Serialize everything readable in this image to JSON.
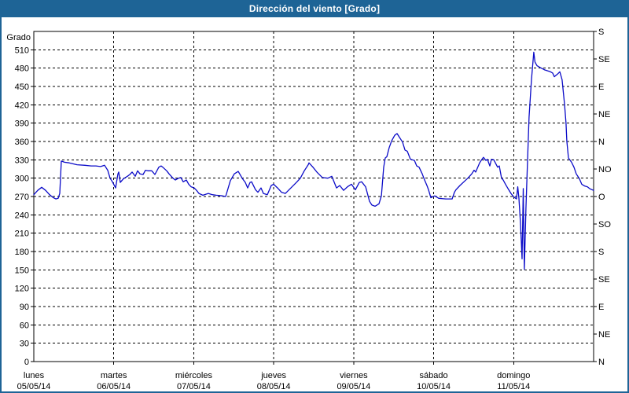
{
  "window": {
    "title": "Dirección del viento [Grado]"
  },
  "colors": {
    "titlebar": "#1E6496",
    "border": "#1E6496",
    "background": "#FFFFFF",
    "frame": "#000000",
    "grid": "#000000",
    "line": "#0B0BC8",
    "text": "#000000"
  },
  "chart_data": {
    "type": "line",
    "title": "Dirección del viento [Grado]",
    "ylabel": "Grado",
    "y_min": 0,
    "y_max": 540,
    "y_grid_step": 30,
    "grid": "dashed",
    "legend_position": "none",
    "x_range_days": [
      0,
      7
    ],
    "left_ticks": [
      0,
      30,
      60,
      90,
      120,
      150,
      180,
      210,
      240,
      270,
      300,
      330,
      360,
      390,
      420,
      450,
      480,
      510
    ],
    "right_ticks": [
      {
        "value": 0,
        "label": "N"
      },
      {
        "value": 45,
        "label": "NE"
      },
      {
        "value": 90,
        "label": "E"
      },
      {
        "value": 135,
        "label": "SE"
      },
      {
        "value": 180,
        "label": "S"
      },
      {
        "value": 225,
        "label": "SO"
      },
      {
        "value": 270,
        "label": "O"
      },
      {
        "value": 315,
        "label": "NO"
      },
      {
        "value": 360,
        "label": "N"
      },
      {
        "value": 405,
        "label": "NE"
      },
      {
        "value": 450,
        "label": "E"
      },
      {
        "value": 495,
        "label": "SE"
      },
      {
        "value": 540,
        "label": "S"
      }
    ],
    "x_days": [
      {
        "name": "lunes",
        "date": "05/05/14"
      },
      {
        "name": "martes",
        "date": "06/05/14"
      },
      {
        "name": "miércoles",
        "date": "07/05/14"
      },
      {
        "name": "jueves",
        "date": "08/05/14"
      },
      {
        "name": "viernes",
        "date": "09/05/14"
      },
      {
        "name": "sábado",
        "date": "10/05/14"
      },
      {
        "name": "domingo",
        "date": "11/05/14"
      }
    ],
    "series": [
      {
        "name": "Dirección del viento (grados)",
        "points": [
          [
            0.0,
            273
          ],
          [
            0.049,
            280
          ],
          [
            0.098,
            285
          ],
          [
            0.147,
            280
          ],
          [
            0.197,
            273
          ],
          [
            0.246,
            268
          ],
          [
            0.275,
            266
          ],
          [
            0.305,
            267
          ],
          [
            0.324,
            275
          ],
          [
            0.344,
            328
          ],
          [
            0.383,
            326
          ],
          [
            0.442,
            325
          ],
          [
            0.541,
            322
          ],
          [
            0.639,
            321
          ],
          [
            0.718,
            320
          ],
          [
            0.777,
            320
          ],
          [
            0.836,
            319
          ],
          [
            0.885,
            321
          ],
          [
            0.924,
            313
          ],
          [
            0.954,
            300
          ],
          [
            0.983,
            294
          ],
          [
            1.022,
            284
          ],
          [
            1.052,
            307
          ],
          [
            1.062,
            310
          ],
          [
            1.081,
            293
          ],
          [
            1.121,
            299
          ],
          [
            1.17,
            303
          ],
          [
            1.2,
            306
          ],
          [
            1.229,
            310
          ],
          [
            1.268,
            303
          ],
          [
            1.298,
            312
          ],
          [
            1.327,
            307
          ],
          [
            1.367,
            306
          ],
          [
            1.396,
            313
          ],
          [
            1.426,
            312
          ],
          [
            1.475,
            312
          ],
          [
            1.514,
            306
          ],
          [
            1.563,
            318
          ],
          [
            1.593,
            320
          ],
          [
            1.612,
            318
          ],
          [
            1.662,
            312
          ],
          [
            1.691,
            307
          ],
          [
            1.74,
            300
          ],
          [
            1.77,
            297
          ],
          [
            1.809,
            300
          ],
          [
            1.839,
            301
          ],
          [
            1.868,
            294
          ],
          [
            1.907,
            297
          ],
          [
            1.937,
            290
          ],
          [
            1.966,
            286
          ],
          [
            2.006,
            284
          ],
          [
            2.035,
            280
          ],
          [
            2.065,
            275
          ],
          [
            2.114,
            272
          ],
          [
            2.183,
            275
          ],
          [
            2.232,
            273
          ],
          [
            2.281,
            272
          ],
          [
            2.36,
            271
          ],
          [
            2.399,
            270
          ],
          [
            2.458,
            296
          ],
          [
            2.507,
            307
          ],
          [
            2.556,
            311
          ],
          [
            2.605,
            300
          ],
          [
            2.645,
            293
          ],
          [
            2.674,
            284
          ],
          [
            2.704,
            293
          ],
          [
            2.723,
            294
          ],
          [
            2.772,
            281
          ],
          [
            2.802,
            277
          ],
          [
            2.841,
            284
          ],
          [
            2.871,
            275
          ],
          [
            2.92,
            273
          ],
          [
            2.969,
            288
          ],
          [
            2.999,
            290
          ],
          [
            3.048,
            284
          ],
          [
            3.097,
            277
          ],
          [
            3.146,
            275
          ],
          [
            3.215,
            284
          ],
          [
            3.284,
            293
          ],
          [
            3.333,
            300
          ],
          [
            3.382,
            312
          ],
          [
            3.431,
            322
          ],
          [
            3.441,
            325
          ],
          [
            3.49,
            318
          ],
          [
            3.539,
            310
          ],
          [
            3.608,
            301
          ],
          [
            3.677,
            300
          ],
          [
            3.726,
            303
          ],
          [
            3.785,
            284
          ],
          [
            3.825,
            288
          ],
          [
            3.874,
            280
          ],
          [
            3.923,
            286
          ],
          [
            3.972,
            290
          ],
          [
            4.021,
            281
          ],
          [
            4.07,
            293
          ],
          [
            4.1,
            294
          ],
          [
            4.149,
            286
          ],
          [
            4.198,
            262
          ],
          [
            4.228,
            256
          ],
          [
            4.267,
            254
          ],
          [
            4.316,
            258
          ],
          [
            4.346,
            271
          ],
          [
            4.375,
            318
          ],
          [
            4.395,
            333
          ],
          [
            4.414,
            335
          ],
          [
            4.444,
            350
          ],
          [
            4.474,
            361
          ],
          [
            4.513,
            370
          ],
          [
            4.542,
            373
          ],
          [
            4.572,
            367
          ],
          [
            4.611,
            359
          ],
          [
            4.641,
            346
          ],
          [
            4.67,
            344
          ],
          [
            4.709,
            331
          ],
          [
            4.759,
            329
          ],
          [
            4.788,
            320
          ],
          [
            4.817,
            318
          ],
          [
            4.857,
            307
          ],
          [
            4.886,
            297
          ],
          [
            4.916,
            288
          ],
          [
            4.935,
            281
          ],
          [
            4.965,
            268
          ],
          [
            5.014,
            271
          ],
          [
            5.063,
            267
          ],
          [
            5.152,
            266
          ],
          [
            5.23,
            266
          ],
          [
            5.26,
            277
          ],
          [
            5.279,
            281
          ],
          [
            5.329,
            288
          ],
          [
            5.378,
            294
          ],
          [
            5.427,
            300
          ],
          [
            5.476,
            307
          ],
          [
            5.505,
            313
          ],
          [
            5.525,
            310
          ],
          [
            5.574,
            325
          ],
          [
            5.604,
            331
          ],
          [
            5.623,
            334
          ],
          [
            5.653,
            329
          ],
          [
            5.672,
            331
          ],
          [
            5.702,
            320
          ],
          [
            5.722,
            331
          ],
          [
            5.751,
            330
          ],
          [
            5.8,
            318
          ],
          [
            5.82,
            320
          ],
          [
            5.849,
            300
          ],
          [
            5.869,
            297
          ],
          [
            5.898,
            290
          ],
          [
            5.938,
            281
          ],
          [
            5.967,
            275
          ],
          [
            5.997,
            270
          ],
          [
            6.036,
            266
          ],
          [
            6.051,
            286
          ],
          [
            6.066,
            267
          ],
          [
            6.085,
            228
          ],
          [
            6.095,
            200
          ],
          [
            6.105,
            168
          ],
          [
            6.12,
            283
          ],
          [
            6.134,
            151
          ],
          [
            6.154,
            250
          ],
          [
            6.174,
            330
          ],
          [
            6.193,
            400
          ],
          [
            6.223,
            462
          ],
          [
            6.252,
            506
          ],
          [
            6.267,
            490
          ],
          [
            6.292,
            484
          ],
          [
            6.331,
            481
          ],
          [
            6.39,
            477
          ],
          [
            6.459,
            474
          ],
          [
            6.488,
            472
          ],
          [
            6.508,
            466
          ],
          [
            6.547,
            470
          ],
          [
            6.577,
            474
          ],
          [
            6.606,
            461
          ],
          [
            6.636,
            421
          ],
          [
            6.655,
            390
          ],
          [
            6.665,
            361
          ],
          [
            6.685,
            333
          ],
          [
            6.724,
            326
          ],
          [
            6.754,
            318
          ],
          [
            6.783,
            307
          ],
          [
            6.822,
            299
          ],
          [
            6.852,
            290
          ],
          [
            6.891,
            287
          ],
          [
            6.921,
            286
          ],
          [
            6.95,
            283
          ],
          [
            6.98,
            281
          ],
          [
            7.0,
            280
          ]
        ]
      }
    ]
  }
}
